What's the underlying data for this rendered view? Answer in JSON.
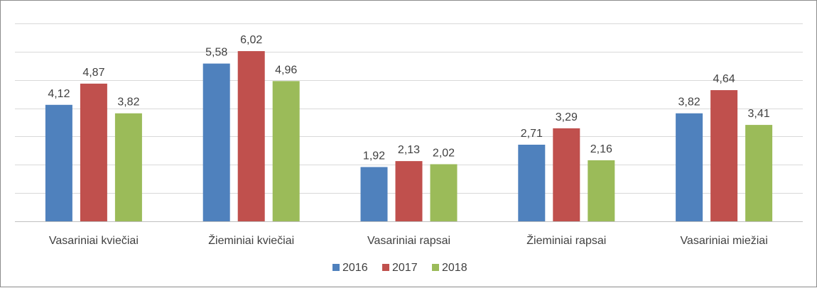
{
  "chart_data": {
    "type": "bar",
    "title": "",
    "xlabel": "",
    "ylabel": "",
    "categories": [
      "Vasariniai kviečiai",
      "Žieminiai kviečiai",
      "Vasariniai rapsai",
      "Žieminiai rapsai",
      "Vasariniai miežiai"
    ],
    "series": [
      {
        "name": "2016",
        "color": "#4f81bd",
        "values": [
          4.12,
          5.58,
          1.92,
          2.71,
          3.82
        ],
        "labels": [
          "4,12",
          "5,58",
          "1,92",
          "2,71",
          "3,82"
        ]
      },
      {
        "name": "2017",
        "color": "#c0504d",
        "values": [
          4.87,
          6.02,
          2.13,
          3.29,
          4.64
        ],
        "labels": [
          "4,87",
          "6,02",
          "2,13",
          "3,29",
          "4,64"
        ]
      },
      {
        "name": "2018",
        "color": "#9bbb59",
        "values": [
          3.82,
          4.96,
          2.02,
          2.16,
          3.41
        ],
        "labels": [
          "3,82",
          "4,96",
          "2,02",
          "2,16",
          "3,41"
        ]
      }
    ],
    "ylim": [
      0,
      7
    ],
    "y_gridlines": [
      0,
      1,
      2,
      3,
      4,
      5,
      6,
      7
    ],
    "grid": true,
    "y_tick_labels_shown": false,
    "legend_position": "bottom"
  }
}
